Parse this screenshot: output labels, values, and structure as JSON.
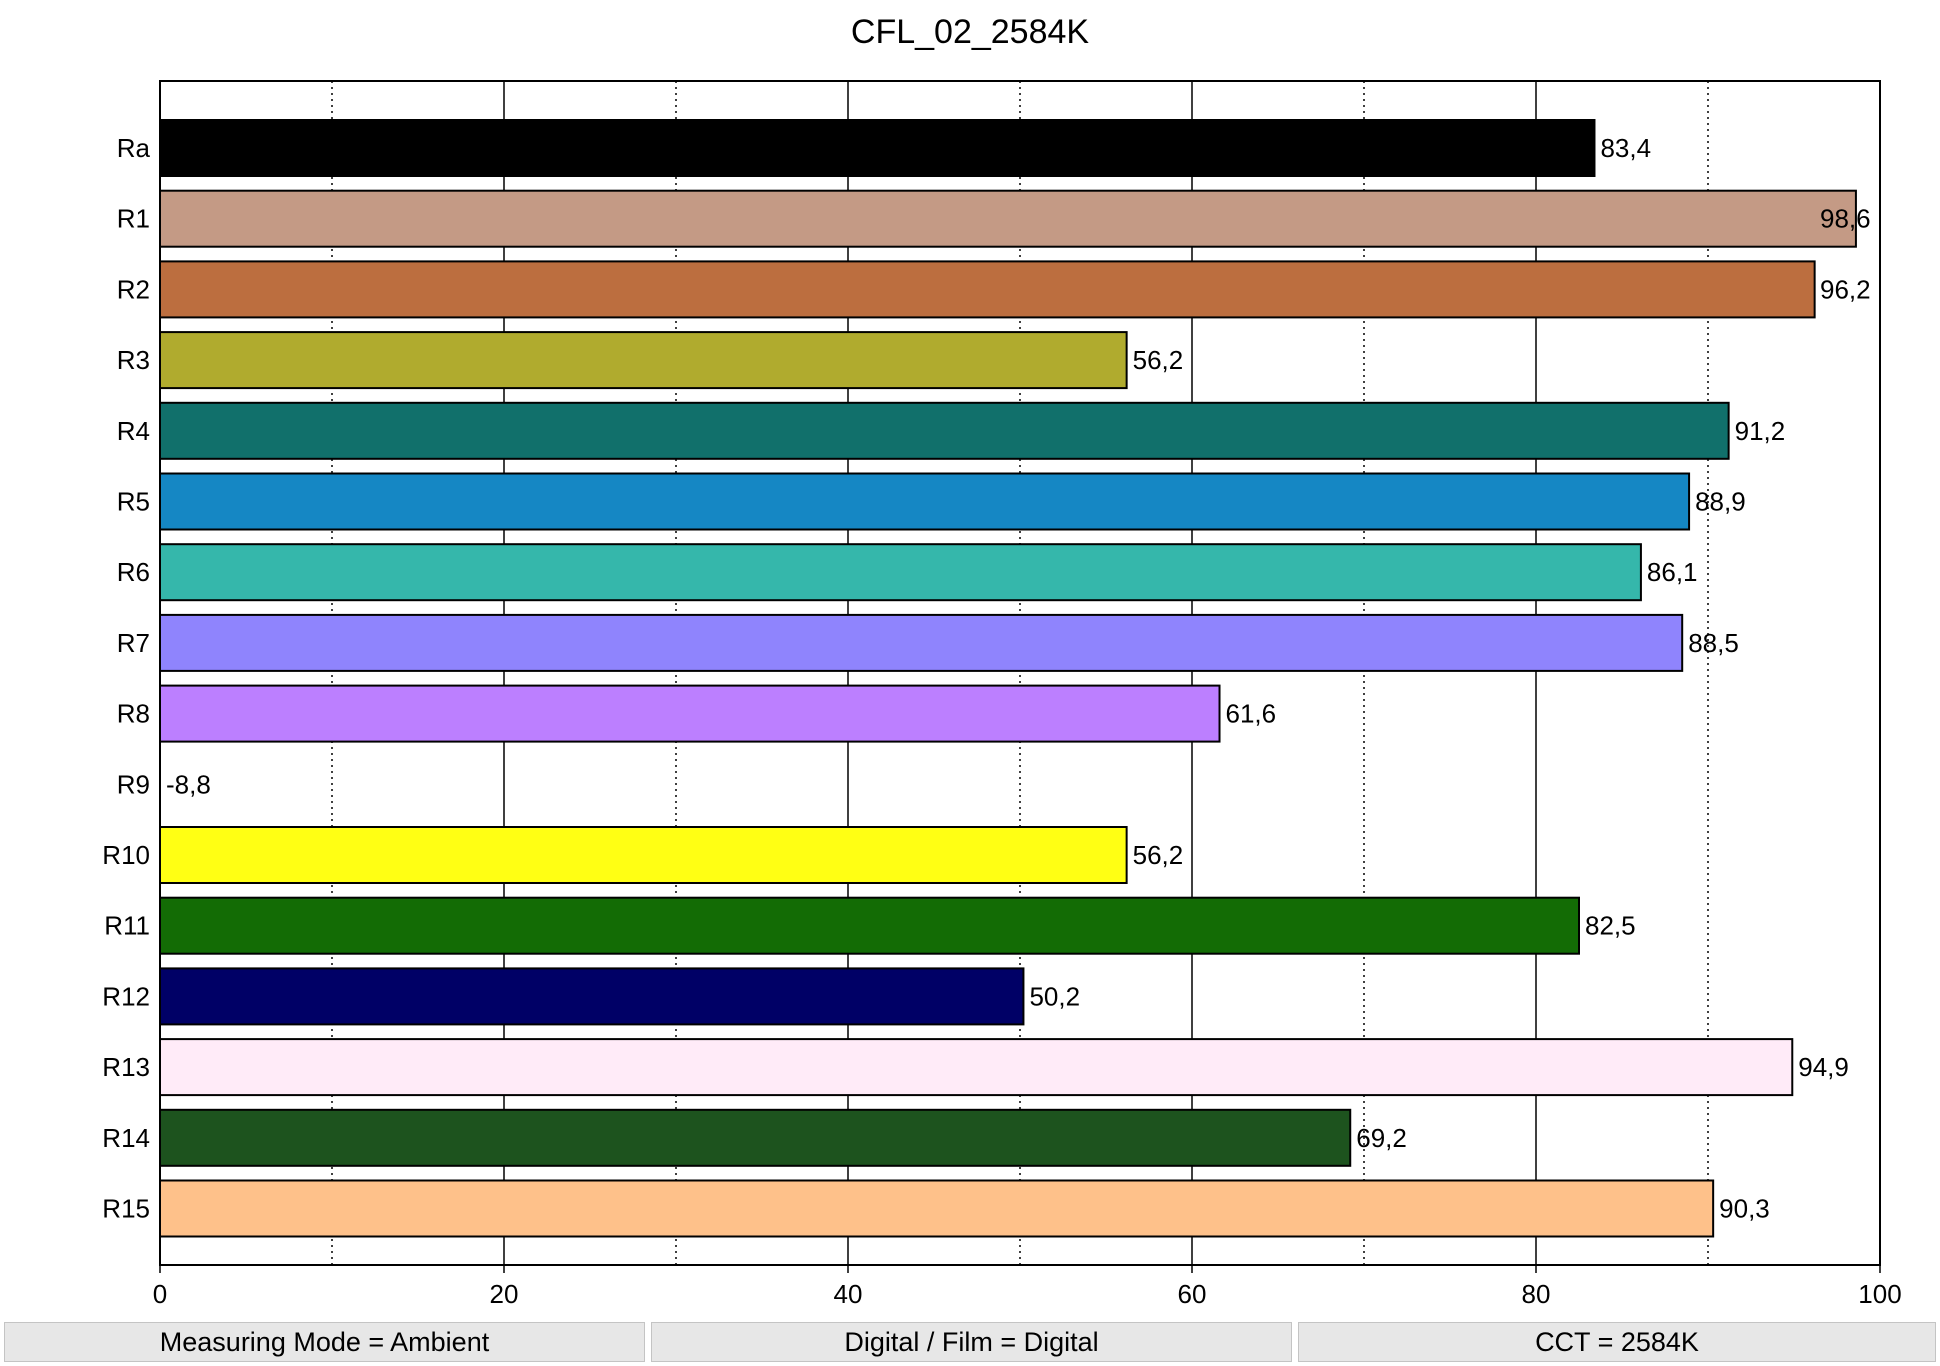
{
  "chart_data": {
    "type": "bar",
    "orientation": "horizontal",
    "title": "CFL_02_2584K",
    "categories": [
      "Ra",
      "R1",
      "R2",
      "R3",
      "R4",
      "R5",
      "R6",
      "R7",
      "R8",
      "R9",
      "R10",
      "R11",
      "R12",
      "R13",
      "R14",
      "R15"
    ],
    "values": [
      83.4,
      98.6,
      96.2,
      56.2,
      91.2,
      88.9,
      86.1,
      88.5,
      61.6,
      -8.8,
      56.2,
      82.5,
      50.2,
      94.9,
      69.2,
      90.3
    ],
    "value_labels": [
      "83,4",
      "98,6",
      "96,2",
      "56,2",
      "91,2",
      "88,9",
      "86,1",
      "88,5",
      "61,6",
      "-8,8",
      "56,2",
      "82,5",
      "50,2",
      "94,9",
      "69,2",
      "90,3"
    ],
    "colors": [
      "#000000",
      "#c49a85",
      "#bc6e3f",
      "#b0ab2e",
      "#11706b",
      "#1587c4",
      "#35b7ab",
      "#8f84fd",
      "#bc7fff",
      "#ffffff",
      "#ffff14",
      "#136c05",
      "#000066",
      "#ffebf8",
      "#1d531e",
      "#fec18a"
    ],
    "xlim": [
      0,
      100
    ],
    "x_ticks": [
      0,
      20,
      40,
      60,
      80,
      100
    ],
    "x_tick_labels": [
      "0",
      "20",
      "40",
      "60",
      "80",
      "100"
    ],
    "x_minor_gridlines": [
      10,
      30,
      50,
      70,
      90
    ],
    "grid": true,
    "legend": "none",
    "xlabel": "",
    "ylabel": ""
  },
  "status_bar": {
    "measuring_mode": "Measuring Mode = Ambient",
    "digital_film": "Digital / Film = Digital",
    "cct": "CCT = 2584K"
  }
}
